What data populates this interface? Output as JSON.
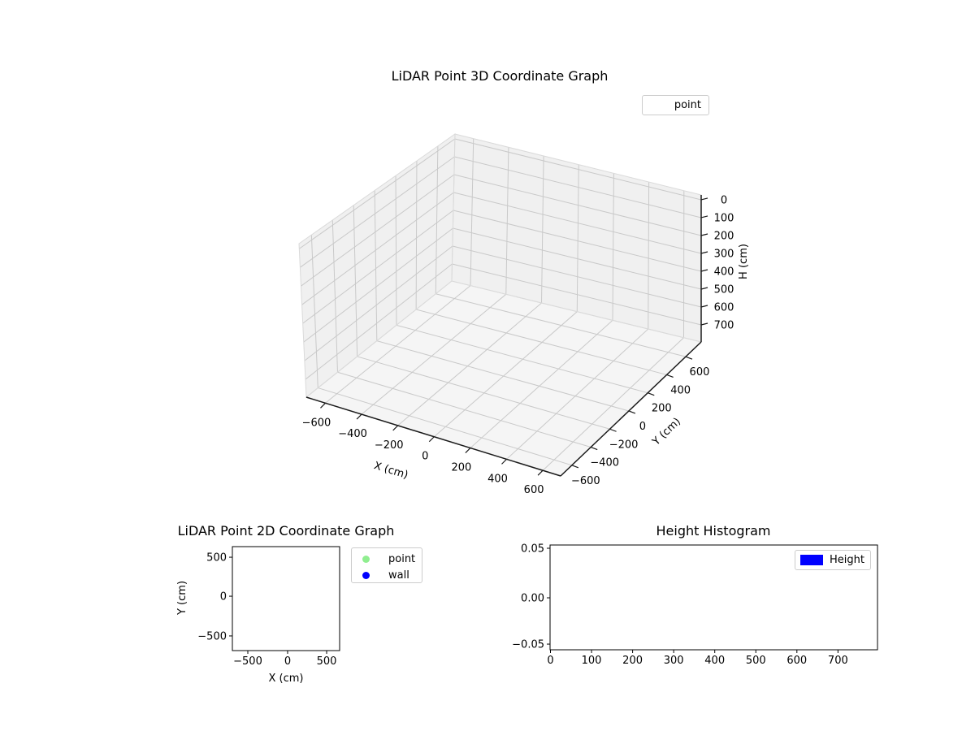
{
  "plot3d": {
    "title": "LiDAR Point 3D Coordinate Graph",
    "xlabel": "X (cm)",
    "ylabel": "Y (cm)",
    "zlabel": "H (cm)",
    "xtick_labels": [
      "−600",
      "−400",
      "−200",
      "0",
      "200",
      "400",
      "600"
    ],
    "ytick_labels": [
      "−600",
      "−400",
      "−200",
      "0",
      "200",
      "400",
      "600"
    ],
    "ztick_labels": [
      "0",
      "100",
      "200",
      "300",
      "400",
      "500",
      "600",
      "700"
    ],
    "legend": [
      {
        "label": "point",
        "marker_color": "none"
      }
    ]
  },
  "plot2d": {
    "title": "LiDAR Point 2D Coordinate Graph",
    "xlabel": "X (cm)",
    "ylabel": "Y (cm)",
    "xtick_labels": [
      "−500",
      "0",
      "500"
    ],
    "ytick_labels": [
      "500",
      "0",
      "−500"
    ],
    "legend": [
      {
        "label": "point",
        "marker_color": "#90ee90"
      },
      {
        "label": "wall",
        "marker_color": "#0000ff"
      }
    ]
  },
  "hist": {
    "title": "Height Histogram",
    "xtick_labels": [
      "0",
      "100",
      "200",
      "300",
      "400",
      "500",
      "600",
      "700"
    ],
    "ytick_labels": [
      "0.05",
      "0.00",
      "−0.05"
    ],
    "legend": [
      {
        "label": "Height",
        "marker_color": "#0000ff"
      }
    ]
  },
  "chart_data": [
    {
      "type": "scatter3d",
      "title": "LiDAR Point 3D Coordinate Graph",
      "xlabel": "X (cm)",
      "ylabel": "Y (cm)",
      "zlabel": "H (cm)",
      "xticks": [
        -600,
        -400,
        -200,
        0,
        200,
        400,
        600
      ],
      "yticks": [
        -600,
        -400,
        -200,
        0,
        200,
        400,
        600
      ],
      "zticks": [
        0,
        100,
        200,
        300,
        400,
        500,
        600,
        700
      ],
      "xlim": [
        -700,
        700
      ],
      "ylim": [
        -700,
        700
      ],
      "zlim": [
        -20,
        805
      ],
      "zaxis_inverted": true,
      "grid": true,
      "pane_color": "#f2f2f2",
      "legend_entries": [
        "point"
      ],
      "series": [
        {
          "name": "point",
          "points": []
        }
      ]
    },
    {
      "type": "scatter",
      "title": "LiDAR Point 2D Coordinate Graph",
      "xlabel": "X (cm)",
      "ylabel": "Y (cm)",
      "xticks": [
        -500,
        0,
        500
      ],
      "yticks": [
        500,
        0,
        -500
      ],
      "xlim": [
        -690,
        655
      ],
      "ylim": [
        -685,
        645
      ],
      "grid": false,
      "legend_entries": [
        "point",
        "wall"
      ],
      "legend_colors": [
        "#90ee90",
        "#0000ff"
      ],
      "series": [
        {
          "name": "point",
          "points": []
        },
        {
          "name": "wall",
          "points": []
        }
      ]
    },
    {
      "type": "histogram",
      "title": "Height Histogram",
      "xticks": [
        0,
        100,
        200,
        300,
        400,
        500,
        600,
        700
      ],
      "yticks": [
        0.05,
        0.0,
        -0.05
      ],
      "xlim": [
        0,
        795
      ],
      "ylim": [
        -0.057,
        0.054
      ],
      "grid": false,
      "legend_entries": [
        "Height"
      ],
      "legend_colors": [
        "#0000ff"
      ],
      "values": []
    }
  ]
}
